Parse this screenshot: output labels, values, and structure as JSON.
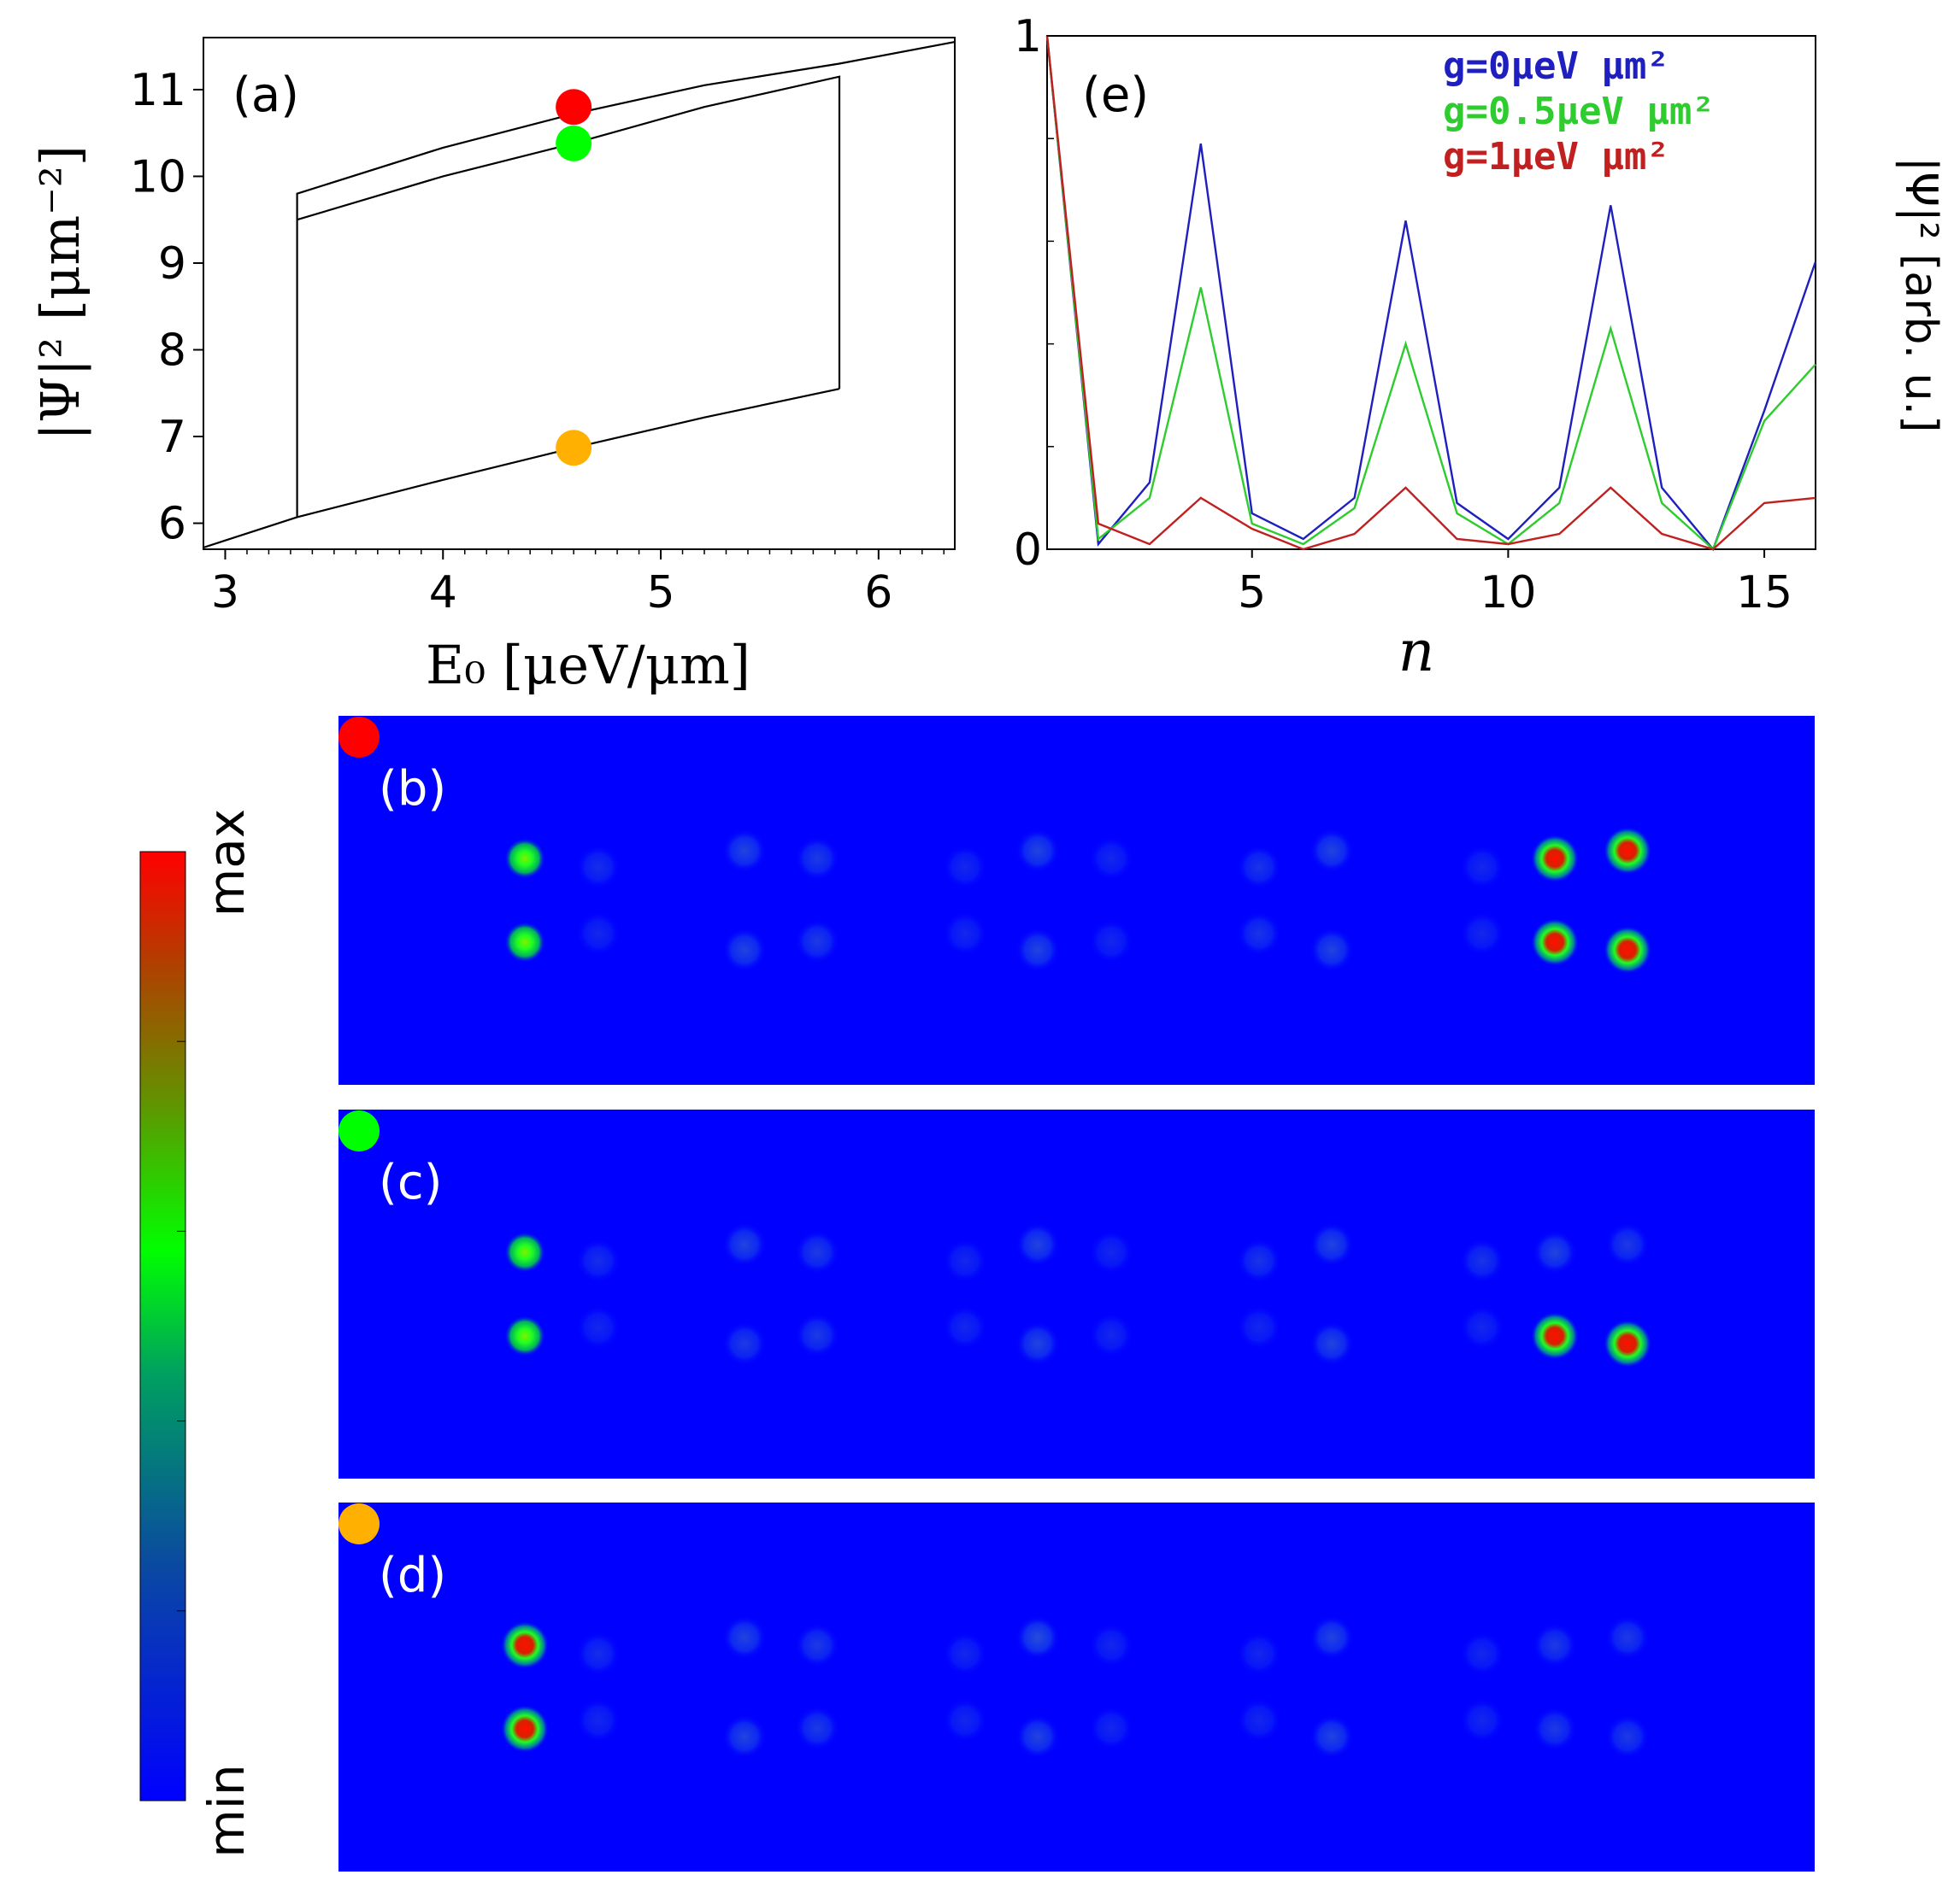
{
  "colors": {
    "map_bg": "#0000ff",
    "marker_red": "#ff0000",
    "marker_green": "#00ff00",
    "marker_orange": "#ffb000",
    "series_blue": "#1f1fbf",
    "series_green": "#2ecc2e",
    "series_red": "#c02020"
  },
  "chart_data": [
    {
      "id": "a",
      "type": "line",
      "panel_label": "(a)",
      "xlabel": "E₀ [μeV/μm]",
      "ylabel": "|Ψ|² [μm⁻²]",
      "xlim": [
        2.9,
        6.35
      ],
      "ylim": [
        5.7,
        11.6
      ],
      "xticks": [
        3,
        4,
        5,
        6
      ],
      "yticks": [
        6,
        7,
        8,
        9,
        10,
        11
      ],
      "grid": false,
      "series": [
        {
          "x": [
            2.9,
            3.33,
            4.0,
            4.6,
            5.2,
            5.82
          ],
          "y": [
            5.72,
            6.07,
            6.5,
            6.87,
            7.22,
            7.55
          ]
        },
        {
          "x": [
            3.33,
            3.33,
            4.0,
            4.6,
            5.2,
            5.82,
            5.82
          ],
          "y": [
            6.07,
            9.5,
            10.0,
            10.38,
            10.8,
            11.15,
            7.55
          ]
        },
        {
          "x": [
            3.33,
            3.33,
            4.0,
            4.6,
            5.2,
            5.82,
            6.35
          ],
          "y": [
            9.5,
            9.8,
            10.33,
            10.72,
            11.05,
            11.3,
            11.55
          ]
        }
      ],
      "markers": [
        {
          "x": 4.6,
          "y": 10.8,
          "color": "#ff0000"
        },
        {
          "x": 4.6,
          "y": 10.38,
          "color": "#00ff00"
        },
        {
          "x": 4.6,
          "y": 6.87,
          "color": "#ffb000"
        }
      ]
    },
    {
      "id": "e",
      "type": "line",
      "panel_label": "(e)",
      "xlabel": "n",
      "ylabel": "|Ψ|² [arb. u.]",
      "xlim": [
        1,
        16
      ],
      "ylim": [
        0,
        1
      ],
      "xticks": [
        5,
        10,
        15
      ],
      "yticks": [
        0,
        1
      ],
      "grid": false,
      "x": [
        1,
        2,
        3,
        4,
        5,
        6,
        7,
        8,
        9,
        10,
        11,
        12,
        13,
        14,
        15,
        16
      ],
      "series": [
        {
          "name": "g=0μeV μm²",
          "color": "#1f1fbf",
          "values": [
            1.0,
            0.01,
            0.13,
            0.79,
            0.07,
            0.02,
            0.1,
            0.64,
            0.09,
            0.02,
            0.12,
            0.67,
            0.12,
            0.0,
            0.27,
            0.56
          ]
        },
        {
          "name": "g=0.5μeV μm²",
          "color": "#2ecc2e",
          "values": [
            1.0,
            0.02,
            0.1,
            0.51,
            0.05,
            0.01,
            0.08,
            0.4,
            0.07,
            0.01,
            0.09,
            0.43,
            0.09,
            0.0,
            0.25,
            0.36
          ]
        },
        {
          "name": "g=1μeV μm²",
          "color": "#c02020",
          "values": [
            1.0,
            0.05,
            0.01,
            0.1,
            0.04,
            0.0,
            0.03,
            0.12,
            0.02,
            0.01,
            0.03,
            0.12,
            0.03,
            0.0,
            0.09,
            0.1
          ]
        }
      ]
    },
    {
      "id": "maps",
      "type": "heatmap",
      "colorbar": {
        "max_label": "max",
        "min_label": "min",
        "colors": [
          "#0000ff",
          "#00ff00",
          "#ff0000"
        ]
      },
      "panels": [
        {
          "panel_label": "(b)",
          "marker_color": "#ff0000",
          "spots": [
            {
              "col": 0,
              "row": "top",
              "level": 0.6
            },
            {
              "col": 0,
              "row": "bottom",
              "level": 0.6
            },
            {
              "col": 1,
              "row": "top",
              "level": 0.08
            },
            {
              "col": 1,
              "row": "bottom",
              "level": 0.06
            },
            {
              "col": 2,
              "row": "top",
              "level": 0.15
            },
            {
              "col": 2,
              "row": "bottom",
              "level": 0.15
            },
            {
              "col": 3,
              "row": "top",
              "level": 0.12
            },
            {
              "col": 3,
              "row": "bottom",
              "level": 0.12
            },
            {
              "col": 4,
              "row": "top",
              "level": 0.06
            },
            {
              "col": 4,
              "row": "bottom",
              "level": 0.06
            },
            {
              "col": 5,
              "row": "top",
              "level": 0.15
            },
            {
              "col": 5,
              "row": "bottom",
              "level": 0.15
            },
            {
              "col": 6,
              "row": "top",
              "level": 0.06
            },
            {
              "col": 6,
              "row": "bottom",
              "level": 0.06
            },
            {
              "col": 7,
              "row": "top",
              "level": 0.1
            },
            {
              "col": 7,
              "row": "bottom",
              "level": 0.1
            },
            {
              "col": 8,
              "row": "top",
              "level": 0.15
            },
            {
              "col": 8,
              "row": "bottom",
              "level": 0.15
            },
            {
              "col": 9,
              "row": "top",
              "level": 0.06
            },
            {
              "col": 9,
              "row": "bottom",
              "level": 0.06
            },
            {
              "col": 10,
              "row": "top",
              "level": 1.0
            },
            {
              "col": 10,
              "row": "bottom",
              "level": 1.0
            },
            {
              "col": 11,
              "row": "top",
              "level": 1.0
            },
            {
              "col": 11,
              "row": "bottom",
              "level": 1.0
            }
          ]
        },
        {
          "panel_label": "(c)",
          "marker_color": "#00ff00",
          "spots": [
            {
              "col": 0,
              "row": "top",
              "level": 0.6
            },
            {
              "col": 0,
              "row": "bottom",
              "level": 0.6
            },
            {
              "col": 1,
              "row": "top",
              "level": 0.08
            },
            {
              "col": 1,
              "row": "bottom",
              "level": 0.06
            },
            {
              "col": 2,
              "row": "top",
              "level": 0.15
            },
            {
              "col": 2,
              "row": "bottom",
              "level": 0.12
            },
            {
              "col": 3,
              "row": "top",
              "level": 0.12
            },
            {
              "col": 3,
              "row": "bottom",
              "level": 0.12
            },
            {
              "col": 4,
              "row": "top",
              "level": 0.06
            },
            {
              "col": 4,
              "row": "bottom",
              "level": 0.06
            },
            {
              "col": 5,
              "row": "top",
              "level": 0.15
            },
            {
              "col": 5,
              "row": "bottom",
              "level": 0.15
            },
            {
              "col": 6,
              "row": "top",
              "level": 0.06
            },
            {
              "col": 6,
              "row": "bottom",
              "level": 0.06
            },
            {
              "col": 7,
              "row": "top",
              "level": 0.1
            },
            {
              "col": 7,
              "row": "bottom",
              "level": 0.06
            },
            {
              "col": 8,
              "row": "top",
              "level": 0.15
            },
            {
              "col": 8,
              "row": "bottom",
              "level": 0.15
            },
            {
              "col": 9,
              "row": "top",
              "level": 0.1
            },
            {
              "col": 9,
              "row": "bottom",
              "level": 0.06
            },
            {
              "col": 10,
              "row": "top",
              "level": 0.15
            },
            {
              "col": 10,
              "row": "bottom",
              "level": 1.0
            },
            {
              "col": 11,
              "row": "top",
              "level": 0.12
            },
            {
              "col": 11,
              "row": "bottom",
              "level": 1.0
            }
          ]
        },
        {
          "panel_label": "(d)",
          "marker_color": "#ffb000",
          "spots": [
            {
              "col": 0,
              "row": "top",
              "level": 1.0
            },
            {
              "col": 0,
              "row": "bottom",
              "level": 1.0
            },
            {
              "col": 1,
              "row": "top",
              "level": 0.08
            },
            {
              "col": 1,
              "row": "bottom",
              "level": 0.06
            },
            {
              "col": 2,
              "row": "top",
              "level": 0.15
            },
            {
              "col": 2,
              "row": "bottom",
              "level": 0.15
            },
            {
              "col": 3,
              "row": "top",
              "level": 0.12
            },
            {
              "col": 3,
              "row": "bottom",
              "level": 0.12
            },
            {
              "col": 4,
              "row": "top",
              "level": 0.06
            },
            {
              "col": 4,
              "row": "bottom",
              "level": 0.06
            },
            {
              "col": 5,
              "row": "top",
              "level": 0.18
            },
            {
              "col": 5,
              "row": "bottom",
              "level": 0.15
            },
            {
              "col": 6,
              "row": "top",
              "level": 0.06
            },
            {
              "col": 6,
              "row": "bottom",
              "level": 0.06
            },
            {
              "col": 7,
              "row": "top",
              "level": 0.06
            },
            {
              "col": 7,
              "row": "bottom",
              "level": 0.06
            },
            {
              "col": 8,
              "row": "top",
              "level": 0.15
            },
            {
              "col": 8,
              "row": "bottom",
              "level": 0.15
            },
            {
              "col": 9,
              "row": "top",
              "level": 0.06
            },
            {
              "col": 9,
              "row": "bottom",
              "level": 0.06
            },
            {
              "col": 10,
              "row": "top",
              "level": 0.12
            },
            {
              "col": 10,
              "row": "bottom",
              "level": 0.12
            },
            {
              "col": 11,
              "row": "top",
              "level": 0.12
            },
            {
              "col": 11,
              "row": "bottom",
              "level": 0.12
            }
          ]
        }
      ]
    }
  ]
}
